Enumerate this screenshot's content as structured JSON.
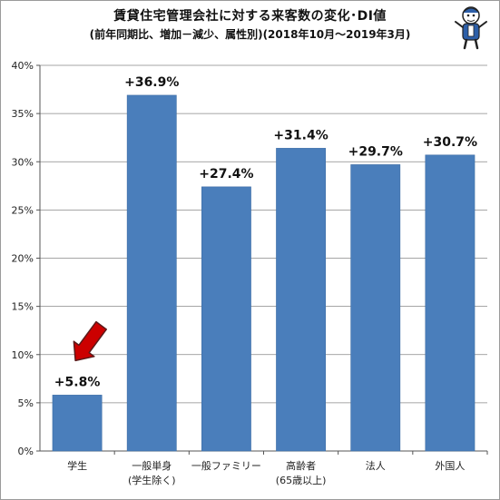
{
  "title": "賃貸住宅管理会社に対する来客数の変化･DI値",
  "subtitle": "(前年同期比、増加－減少、属性別)(2018年10月～2019年3月)",
  "colors": {
    "bar": "#4a7ebb",
    "bar_edge": "#3f6ea5",
    "arrow": "#cc0000",
    "grid": "#888888"
  },
  "chart_data": {
    "type": "bar",
    "title": "賃貸住宅管理会社に対する来客数の変化･DI値",
    "subtitle": "(前年同期比、増加－減少、属性別)(2018年10月～2019年3月)",
    "categories": [
      [
        "学生"
      ],
      [
        "一般単身",
        "(学生除く)"
      ],
      [
        "一般ファミリー"
      ],
      [
        "高齢者",
        "(65歳以上)"
      ],
      [
        "法人"
      ],
      [
        "外国人"
      ]
    ],
    "values": [
      5.8,
      36.9,
      27.4,
      31.4,
      29.7,
      30.7
    ],
    "data_labels": [
      "+5.8%",
      "+36.9%",
      "+27.4%",
      "+31.4%",
      "+29.7%",
      "+30.7%"
    ],
    "yticks": [
      "0%",
      "5%",
      "10%",
      "15%",
      "20%",
      "25%",
      "30%",
      "35%",
      "40%"
    ],
    "ylim": [
      0,
      40
    ],
    "grid": true,
    "legend": "none",
    "annotation": "red arrow pointing to 学生 bar"
  }
}
